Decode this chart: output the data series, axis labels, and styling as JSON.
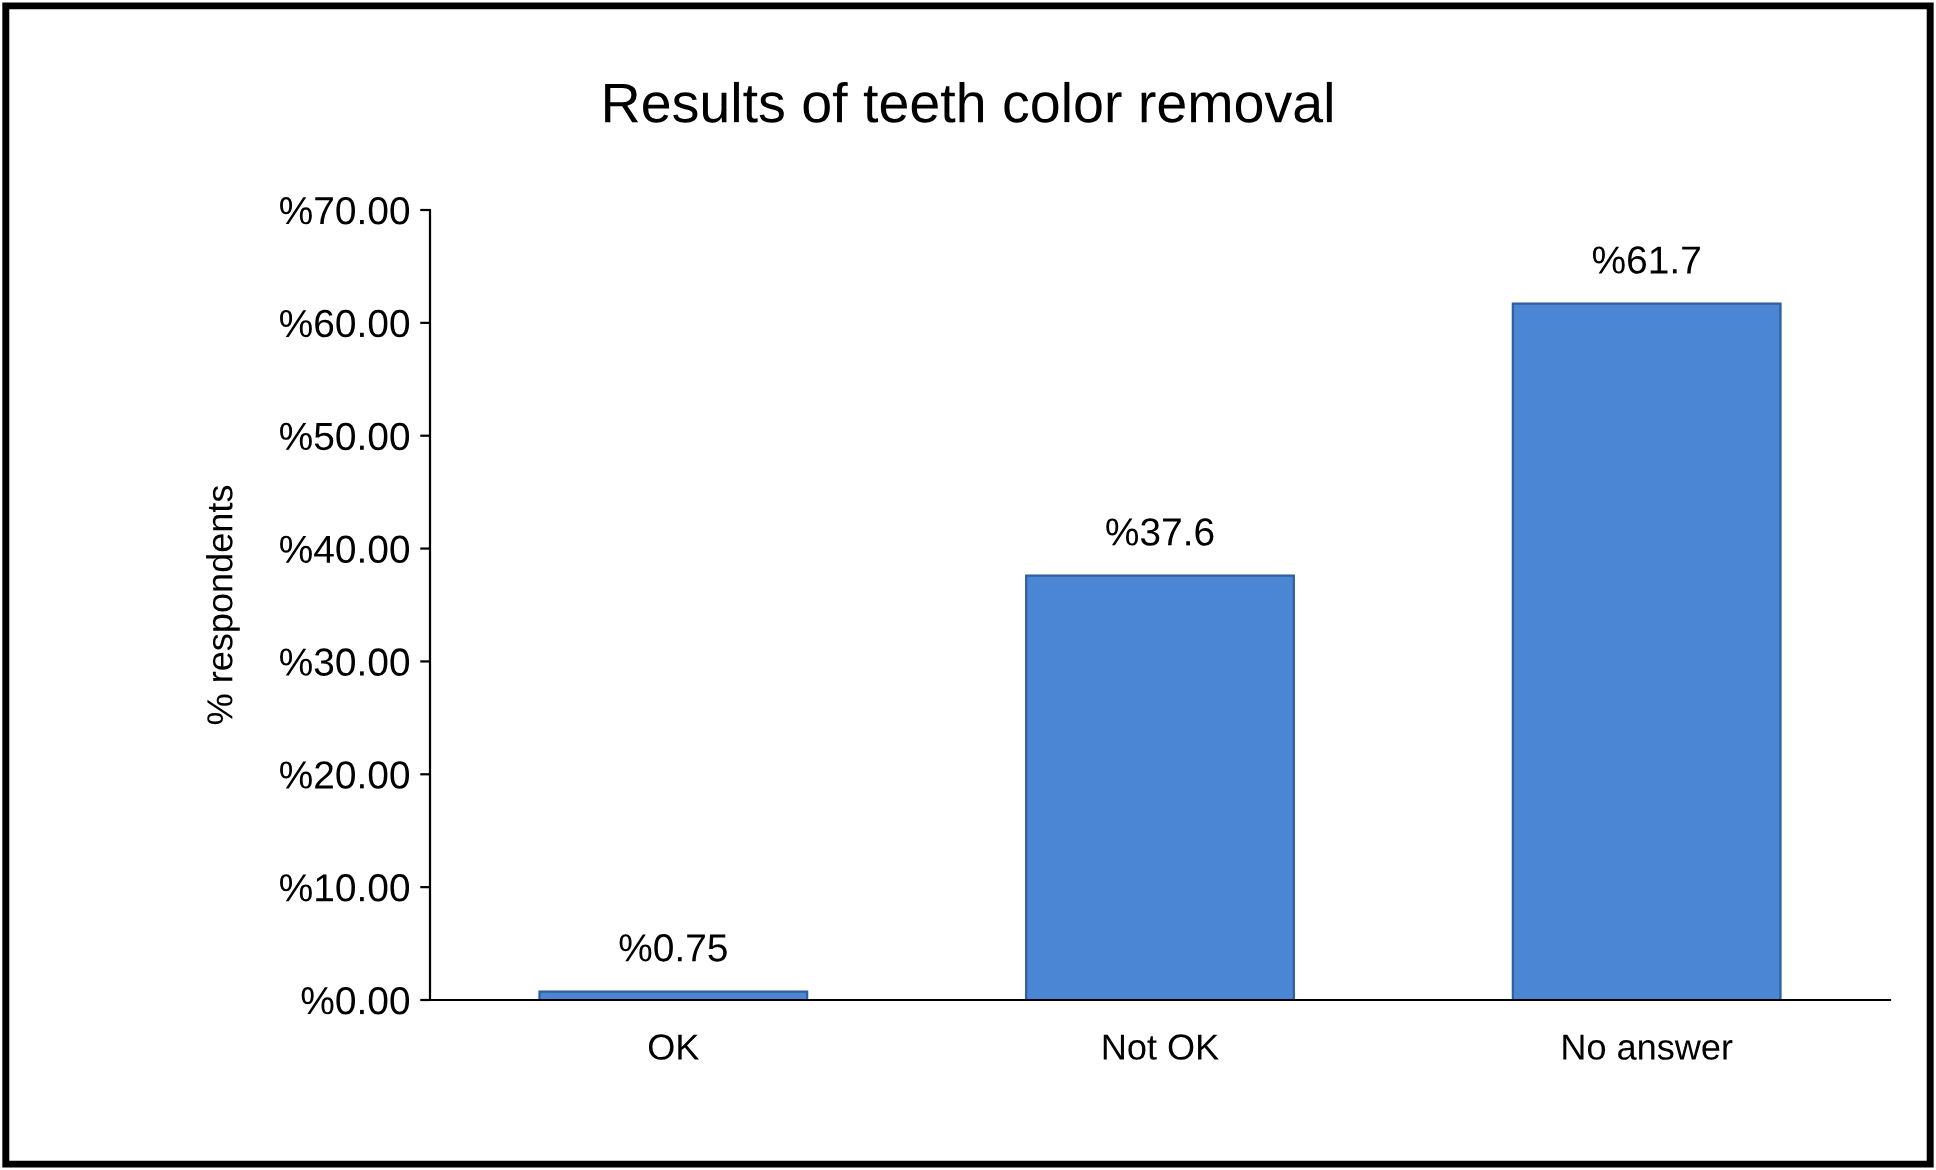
{
  "chart_data": {
    "type": "bar",
    "title": "Results of teeth color removal",
    "ylabel": "% respondents",
    "categories": [
      "OK",
      "Not OK",
      "No answer"
    ],
    "values": [
      0.75,
      37.6,
      61.7
    ],
    "value_labels": [
      "%0.75",
      "%37.6",
      "%61.7"
    ],
    "color": "#4a86d4",
    "ylim": [
      0,
      70
    ],
    "yticks": [
      {
        "value": 0,
        "label": "%0.00"
      },
      {
        "value": 10,
        "label": "%10.00"
      },
      {
        "value": 20,
        "label": "%20.00"
      },
      {
        "value": 30,
        "label": "%30.00"
      },
      {
        "value": 40,
        "label": "%40.00"
      },
      {
        "value": 50,
        "label": "%50.00"
      },
      {
        "value": 60,
        "label": "%60.00"
      },
      {
        "value": 70,
        "label": "%70.00"
      }
    ],
    "grid": false,
    "legend": false
  }
}
